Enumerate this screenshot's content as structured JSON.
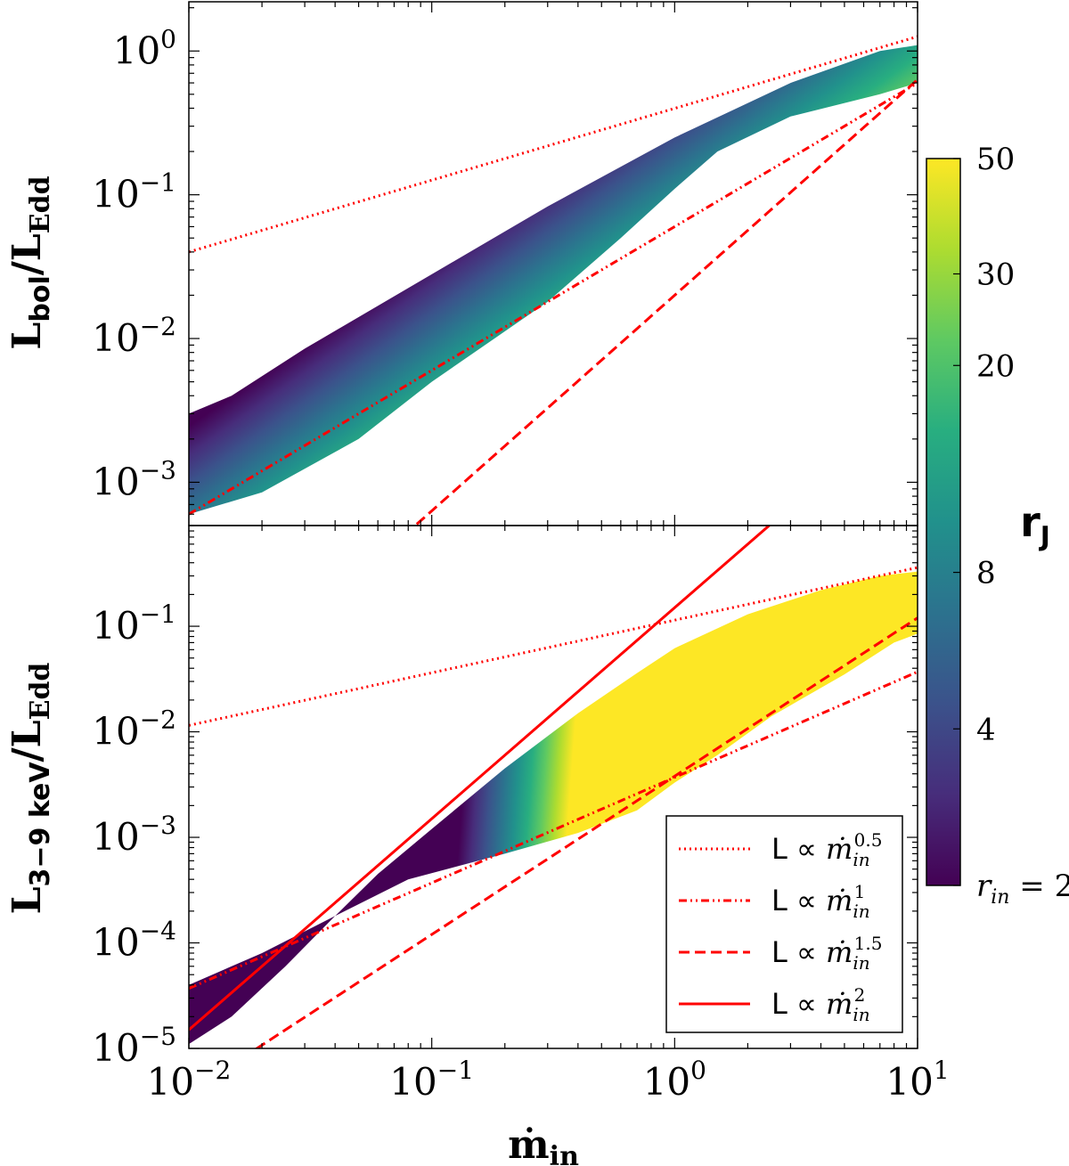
{
  "chart_data": [
    {
      "type": "area",
      "title": "",
      "xscale": "log",
      "yscale": "log",
      "xlim": [
        0.01,
        10
      ],
      "ylim": [
        0.0005,
        2.2
      ],
      "ylabel": {
        "base": "L",
        "sub": "bol",
        "sep": "/",
        "base2": "L",
        "sub2": "Edd"
      },
      "xlabel": "",
      "y_ticks": [
        {
          "value": 0.001,
          "base": "10",
          "exp": "−3"
        },
        {
          "value": 0.01,
          "base": "10",
          "exp": "−2"
        },
        {
          "value": 0.1,
          "base": "10",
          "exp": "−1"
        },
        {
          "value": 1,
          "base": "10",
          "exp": "0"
        }
      ],
      "band": {
        "upper_rin_2": [
          [
            0.01,
            0.003
          ],
          [
            0.015,
            0.004
          ],
          [
            0.03,
            0.0085
          ],
          [
            0.1,
            0.028
          ],
          [
            0.3,
            0.083
          ],
          [
            1.0,
            0.25
          ],
          [
            3.0,
            0.6
          ],
          [
            7.0,
            1.0
          ],
          [
            10.0,
            1.1
          ]
        ],
        "lower_rJ_50": [
          [
            0.01,
            0.0006
          ],
          [
            0.02,
            0.00085
          ],
          [
            0.05,
            0.002
          ],
          [
            0.1,
            0.005
          ],
          [
            0.3,
            0.018
          ],
          [
            0.6,
            0.05
          ],
          [
            1.0,
            0.11
          ],
          [
            1.5,
            0.2
          ],
          [
            3.0,
            0.35
          ],
          [
            7.0,
            0.5
          ],
          [
            10.0,
            0.6
          ]
        ]
      },
      "series": [
        {
          "name": "L ∝ ṁ_in^0.5",
          "style": "dotted",
          "color": "#ff0000",
          "x": [
            0.01,
            10
          ],
          "y": [
            0.04,
            1.26
          ]
        },
        {
          "name": "L ∝ ṁ_in^1",
          "style": "dashdotdot",
          "color": "#ff0000",
          "x": [
            0.01,
            10
          ],
          "y": [
            0.0006,
            0.6
          ]
        },
        {
          "name": "L ∝ ṁ_in^1.5",
          "style": "dashed",
          "color": "#ff0000",
          "x": [
            0.01,
            10
          ],
          "y": [
            2e-05,
            0.632
          ]
        }
      ]
    },
    {
      "type": "area",
      "title": "",
      "xscale": "log",
      "yscale": "log",
      "xlim": [
        0.01,
        10
      ],
      "ylim": [
        1e-05,
        0.9
      ],
      "ylabel": {
        "base": "L",
        "sub": "3−9 keV",
        "sep": "/",
        "base2": "L",
        "sub2": "Edd"
      },
      "xlabel": {
        "base": "ṁ",
        "sub": "in"
      },
      "y_ticks": [
        {
          "value": 1e-05,
          "base": "10",
          "exp": "−5"
        },
        {
          "value": 0.0001,
          "base": "10",
          "exp": "−4"
        },
        {
          "value": 0.001,
          "base": "10",
          "exp": "−3"
        },
        {
          "value": 0.01,
          "base": "10",
          "exp": "−2"
        },
        {
          "value": 0.1,
          "base": "10",
          "exp": "−1"
        }
      ],
      "x_ticks": [
        {
          "value": 0.01,
          "base": "10",
          "exp": "−2"
        },
        {
          "value": 0.1,
          "base": "10",
          "exp": "−1"
        },
        {
          "value": 1,
          "base": "10",
          "exp": "0"
        },
        {
          "value": 10,
          "base": "10",
          "exp": "1"
        }
      ],
      "band": {
        "upper_rin_2": [
          [
            0.01,
            1.1e-05
          ],
          [
            0.015,
            2e-05
          ],
          [
            0.025,
            6e-05
          ],
          [
            0.04,
            0.00018
          ],
          [
            0.06,
            0.00045
          ],
          [
            0.1,
            0.0012
          ],
          [
            0.2,
            0.0045
          ],
          [
            0.4,
            0.015
          ],
          [
            0.7,
            0.036
          ],
          [
            1.0,
            0.062
          ],
          [
            2.0,
            0.13
          ],
          [
            4.0,
            0.22
          ],
          [
            7.0,
            0.3
          ],
          [
            10.0,
            0.33
          ]
        ],
        "lower_rJ_50": [
          [
            0.01,
            4e-05
          ],
          [
            0.02,
            8e-05
          ],
          [
            0.04,
            0.00018
          ],
          [
            0.08,
            0.0004
          ],
          [
            0.2,
            0.0007
          ],
          [
            0.4,
            0.0011
          ],
          [
            0.7,
            0.0018
          ],
          [
            1.0,
            0.0033
          ],
          [
            1.5,
            0.006
          ],
          [
            2.5,
            0.014
          ],
          [
            5.0,
            0.035
          ],
          [
            8.0,
            0.07
          ],
          [
            10.0,
            0.085
          ]
        ]
      },
      "series": [
        {
          "name": "L ∝ ṁ_in^0.5",
          "style": "dotted",
          "color": "#ff0000",
          "x": [
            0.01,
            10
          ],
          "y": [
            0.0115,
            0.36
          ]
        },
        {
          "name": "L ∝ ṁ_in^1",
          "style": "dashdotdot",
          "color": "#ff0000",
          "x": [
            0.01,
            10
          ],
          "y": [
            3.7e-05,
            0.037
          ]
        },
        {
          "name": "L ∝ ṁ_in^1.5",
          "style": "dashed",
          "color": "#ff0000",
          "x": [
            0.01,
            10
          ],
          "y": [
            3.8e-06,
            0.12
          ]
        },
        {
          "name": "L ∝ ṁ_in^2",
          "style": "solid",
          "color": "#ff0000",
          "x": [
            0.01,
            10
          ],
          "y": [
            1.5e-05,
            15
          ]
        }
      ]
    }
  ],
  "colorbar": {
    "label": {
      "base": "r",
      "sub": "J"
    },
    "colormap": [
      "#440154",
      "#472d7b",
      "#3b528b",
      "#2c728e",
      "#21918c",
      "#28ae80",
      "#5ec962",
      "#addc30",
      "#fde725"
    ],
    "range": [
      2,
      50
    ],
    "scale": "log",
    "ticks": [
      {
        "value": 2,
        "label": "r",
        "sub": "in",
        "suffix": " = 2"
      },
      {
        "value": 4,
        "label": "4"
      },
      {
        "value": 8,
        "label": "8"
      },
      {
        "value": 20,
        "label": "20"
      },
      {
        "value": 30,
        "label": "30"
      },
      {
        "value": 50,
        "label": "50"
      }
    ]
  },
  "legend": {
    "placement": "lower-right",
    "entries": [
      {
        "style": "dotted",
        "prefix": "L ∝ ",
        "var": "ṁ",
        "sub": "in",
        "exp": "0.5"
      },
      {
        "style": "dashdotdot",
        "prefix": "L ∝ ",
        "var": "ṁ",
        "sub": "in",
        "exp": "1"
      },
      {
        "style": "dashed",
        "prefix": "L ∝ ",
        "var": "ṁ",
        "sub": "in",
        "exp": "1.5"
      },
      {
        "style": "solid",
        "prefix": "L ∝ ",
        "var": "ṁ",
        "sub": "in",
        "exp": "2"
      }
    ]
  }
}
